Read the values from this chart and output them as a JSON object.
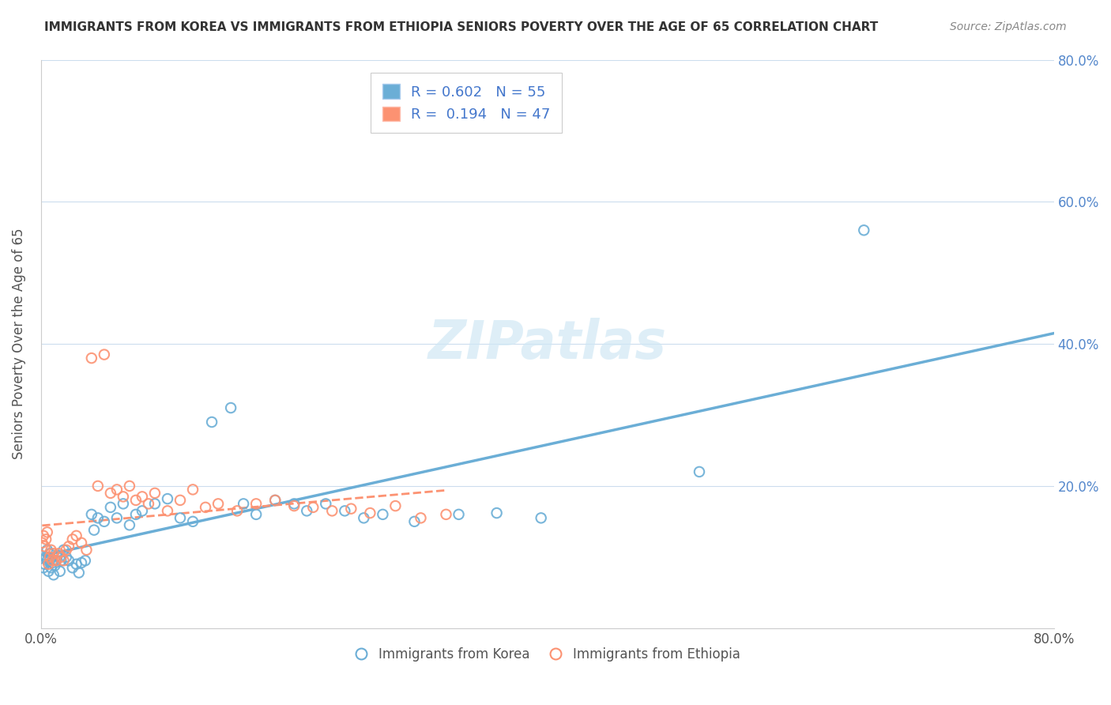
{
  "title": "IMMIGRANTS FROM KOREA VS IMMIGRANTS FROM ETHIOPIA SENIORS POVERTY OVER THE AGE OF 65 CORRELATION CHART",
  "source": "Source: ZipAtlas.com",
  "ylabel": "Seniors Poverty Over the Age of 65",
  "xlabel": "",
  "xlim": [
    0,
    0.8
  ],
  "ylim": [
    0,
    0.8
  ],
  "xticks": [
    0.0,
    0.1,
    0.2,
    0.3,
    0.4,
    0.5,
    0.6,
    0.7,
    0.8
  ],
  "yticks": [
    0.0,
    0.2,
    0.4,
    0.6,
    0.8
  ],
  "xticklabels": [
    "0.0%",
    "",
    "",
    "",
    "",
    "",
    "",
    "",
    "80.0%"
  ],
  "yticklabels": [
    "",
    "20.0%",
    "40.0%",
    "60.0%",
    "80.0%"
  ],
  "legend_labels": [
    "Immigrants from Korea",
    "Immigrants from Ethiopia"
  ],
  "legend_bottom": [
    "Immigrants from Korea",
    "Immigrants from Ethiopia"
  ],
  "korea_color": "#6baed6",
  "ethiopia_color": "#fc9272",
  "korea_R": 0.602,
  "korea_N": 55,
  "ethiopia_R": 0.194,
  "ethiopia_N": 47,
  "watermark": "ZIPatlas",
  "korea_scatter_x": [
    0.002,
    0.003,
    0.004,
    0.005,
    0.005,
    0.006,
    0.007,
    0.007,
    0.008,
    0.009,
    0.01,
    0.011,
    0.012,
    0.013,
    0.015,
    0.016,
    0.018,
    0.02,
    0.022,
    0.025,
    0.028,
    0.03,
    0.032,
    0.035,
    0.04,
    0.042,
    0.045,
    0.05,
    0.055,
    0.06,
    0.065,
    0.07,
    0.075,
    0.08,
    0.09,
    0.1,
    0.11,
    0.12,
    0.135,
    0.15,
    0.16,
    0.17,
    0.185,
    0.2,
    0.21,
    0.225,
    0.24,
    0.255,
    0.27,
    0.295,
    0.33,
    0.36,
    0.395,
    0.52,
    0.65
  ],
  "korea_scatter_y": [
    0.085,
    0.09,
    0.1,
    0.095,
    0.11,
    0.08,
    0.095,
    0.105,
    0.085,
    0.092,
    0.075,
    0.088,
    0.095,
    0.102,
    0.08,
    0.095,
    0.11,
    0.1,
    0.095,
    0.085,
    0.09,
    0.078,
    0.092,
    0.095,
    0.16,
    0.138,
    0.155,
    0.15,
    0.17,
    0.155,
    0.175,
    0.145,
    0.16,
    0.165,
    0.175,
    0.182,
    0.155,
    0.15,
    0.29,
    0.31,
    0.175,
    0.16,
    0.18,
    0.175,
    0.165,
    0.175,
    0.165,
    0.155,
    0.16,
    0.15,
    0.16,
    0.162,
    0.155,
    0.22,
    0.56
  ],
  "ethiopia_scatter_x": [
    0.001,
    0.002,
    0.003,
    0.004,
    0.005,
    0.006,
    0.007,
    0.008,
    0.009,
    0.01,
    0.012,
    0.014,
    0.016,
    0.018,
    0.02,
    0.022,
    0.025,
    0.028,
    0.032,
    0.036,
    0.04,
    0.045,
    0.05,
    0.055,
    0.06,
    0.065,
    0.07,
    0.075,
    0.08,
    0.085,
    0.09,
    0.1,
    0.11,
    0.12,
    0.13,
    0.14,
    0.155,
    0.17,
    0.185,
    0.2,
    0.215,
    0.23,
    0.245,
    0.26,
    0.28,
    0.3,
    0.32
  ],
  "ethiopia_scatter_y": [
    0.12,
    0.13,
    0.115,
    0.125,
    0.135,
    0.09,
    0.1,
    0.11,
    0.095,
    0.105,
    0.095,
    0.105,
    0.1,
    0.095,
    0.11,
    0.115,
    0.125,
    0.13,
    0.12,
    0.11,
    0.38,
    0.2,
    0.385,
    0.19,
    0.195,
    0.185,
    0.2,
    0.18,
    0.185,
    0.175,
    0.19,
    0.165,
    0.18,
    0.195,
    0.17,
    0.175,
    0.165,
    0.175,
    0.18,
    0.172,
    0.17,
    0.165,
    0.168,
    0.162,
    0.172,
    0.155,
    0.16
  ]
}
